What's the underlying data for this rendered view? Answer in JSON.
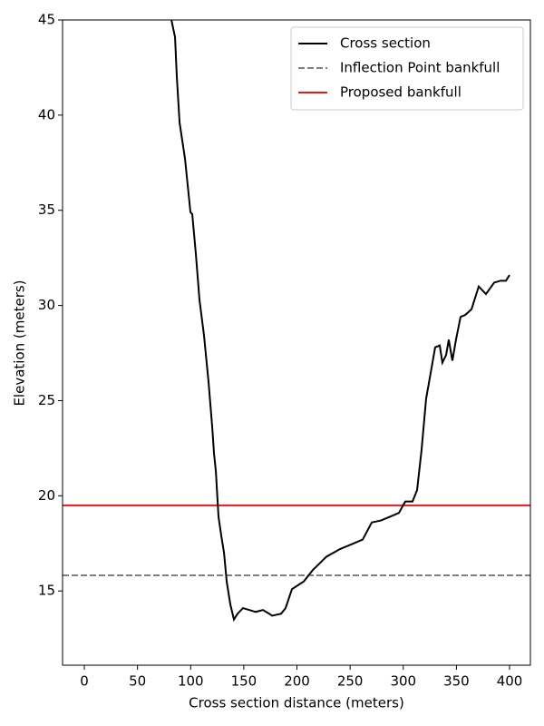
{
  "chart_data": {
    "type": "line",
    "xlabel": "Cross section distance (meters)",
    "ylabel": "Elevation (meters)",
    "xlim": [
      -20.5,
      419.6
    ],
    "ylim": [
      11.1,
      45
    ],
    "xticks": [
      0,
      50,
      100,
      150,
      200,
      250,
      300,
      350,
      400
    ],
    "yticks": [
      15,
      20,
      25,
      30,
      35,
      40,
      45
    ],
    "x": [
      81.9,
      85.3,
      87,
      89.6,
      94.7,
      99.8,
      101.5,
      104.9,
      108.3,
      112.6,
      116.8,
      120.3,
      122,
      123.7,
      126.2,
      128.8,
      131.4,
      133.9,
      137.3,
      140.7,
      144.1,
      149.2,
      155.2,
      161.2,
      168,
      174,
      176.5,
      185,
      189.3,
      195.3,
      206.4,
      214.9,
      227.7,
      240.5,
      253.3,
      261.8,
      270.4,
      278.9,
      287.4,
      295.9,
      301.9,
      308.7,
      313,
      317.2,
      321.5,
      327.5,
      330,
      334.3,
      336.8,
      340.3,
      342.8,
      346.2,
      349.6,
      353.9,
      358.2,
      364.2,
      371,
      377.8,
      385.5,
      391.5,
      396.6,
      400
    ],
    "series": [
      {
        "name": "Cross section",
        "color": "#000000",
        "values": [
          45,
          44.1,
          42,
          39.6,
          37.7,
          34.9,
          34.8,
          32.7,
          30.3,
          28.4,
          26,
          23.6,
          22.2,
          21.3,
          18.9,
          17.9,
          17,
          15.5,
          14.3,
          13.5,
          13.8,
          14.1,
          14,
          13.9,
          14,
          13.8,
          13.7,
          13.8,
          14.1,
          15.1,
          15.5,
          16.1,
          16.8,
          17.2,
          17.5,
          17.7,
          18.6,
          18.7,
          18.9,
          19.1,
          19.7,
          19.7,
          20.3,
          22.4,
          25.1,
          27,
          27.8,
          27.9,
          27,
          27.4,
          28.2,
          27.1,
          28.2,
          29.4,
          29.5,
          29.8,
          31,
          30.6,
          31.2,
          31.3,
          31.3,
          31.6
        ]
      }
    ],
    "hlines": [
      {
        "name": "Inflection Point bankfull",
        "color": "#808080",
        "dashed": true,
        "value": 15.82
      },
      {
        "name": "Proposed bankfull",
        "color": "#e31a1c",
        "dashed": false,
        "value": 19.5
      }
    ],
    "legend": "upper right"
  }
}
